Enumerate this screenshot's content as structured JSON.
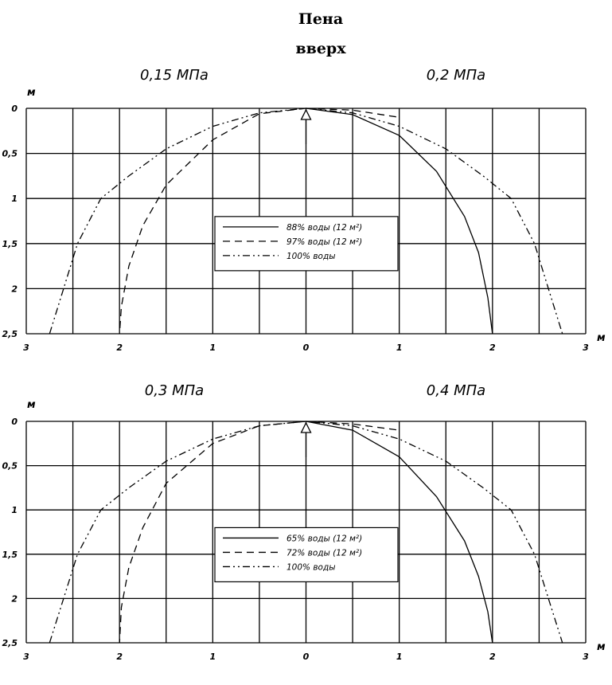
{
  "figure": {
    "title_line1": "Пена",
    "title_line2": "вверх"
  },
  "chart_data": [
    {
      "type": "line",
      "pressure_left": "0,15 МПа",
      "pressure_right": "0,2 МПа",
      "ylabel": "м",
      "xlabel": "м",
      "x_ticks": [
        "3",
        "2",
        "1",
        "0",
        "1",
        "2",
        "3"
      ],
      "x_tick_values": [
        -3,
        -2,
        -1,
        0,
        1,
        2,
        3
      ],
      "y_ticks": [
        "0",
        "0,5",
        "1",
        "1,5",
        "2",
        "2,5"
      ],
      "y_tick_values": [
        0,
        0.5,
        1,
        1.5,
        2,
        2.5
      ],
      "xlim": [
        -3,
        3
      ],
      "ylim": [
        0,
        2.5
      ],
      "y_inverted": true,
      "grid": true,
      "legend_position": "center",
      "legend_labels": [
        "88% воды (12 м²)",
        "97% воды (12 м²)",
        "100% воды"
      ],
      "series": [
        {
          "name": "88% воды (12 м²)",
          "style": "solid",
          "side": "right",
          "x": [
            0,
            0.5,
            1.0,
            1.4,
            1.7,
            1.85,
            1.95,
            2.0
          ],
          "y": [
            0,
            0.07,
            0.3,
            0.7,
            1.2,
            1.6,
            2.1,
            2.5
          ]
        },
        {
          "name": "97% воды (12 м²)",
          "style": "dashed",
          "side": "left",
          "x": [
            0,
            -0.5,
            -1.0,
            -1.5,
            -1.75,
            -1.9,
            -1.98,
            -2.0
          ],
          "y": [
            0,
            0.06,
            0.35,
            0.85,
            1.3,
            1.75,
            2.2,
            2.5
          ]
        },
        {
          "name": "97% воды (12 м²)",
          "style": "dashed",
          "side": "right",
          "x": [
            0,
            0.5,
            1.0
          ],
          "y": [
            0,
            0.02,
            0.1
          ]
        },
        {
          "name": "100% воды",
          "style": "dashdot",
          "side": "both",
          "x": [
            -2.75,
            -2.6,
            -2.45,
            -2.2,
            -1.9,
            -1.5,
            -1.0,
            -0.5,
            0,
            0.5,
            1.0,
            1.5,
            1.9,
            2.2,
            2.45,
            2.6,
            2.75
          ],
          "y": [
            2.5,
            2.0,
            1.5,
            1.0,
            0.75,
            0.45,
            0.2,
            0.05,
            0,
            0.05,
            0.2,
            0.45,
            0.75,
            1.0,
            1.5,
            2.0,
            2.5
          ]
        }
      ]
    },
    {
      "type": "line",
      "pressure_left": "0,3 МПа",
      "pressure_right": "0,4 МПа",
      "ylabel": "м",
      "xlabel": "м",
      "x_ticks": [
        "3",
        "2",
        "1",
        "0",
        "1",
        "2",
        "3"
      ],
      "x_tick_values": [
        -3,
        -2,
        -1,
        0,
        1,
        2,
        3
      ],
      "y_ticks": [
        "0",
        "0,5",
        "1",
        "1,5",
        "2",
        "2,5"
      ],
      "y_tick_values": [
        0,
        0.5,
        1,
        1.5,
        2,
        2.5
      ],
      "xlim": [
        -3,
        3
      ],
      "ylim": [
        0,
        2.5
      ],
      "y_inverted": true,
      "grid": true,
      "legend_position": "center",
      "legend_labels": [
        "65% воды (12 м²)",
        "72% воды (12 м²)",
        "100% воды"
      ],
      "series": [
        {
          "name": "65% воды (12 м²)",
          "style": "solid",
          "side": "right",
          "x": [
            0,
            0.5,
            1.0,
            1.4,
            1.7,
            1.85,
            1.95,
            2.0
          ],
          "y": [
            0,
            0.1,
            0.4,
            0.85,
            1.35,
            1.75,
            2.15,
            2.5
          ]
        },
        {
          "name": "72% воды (12 м²)",
          "style": "dashed",
          "side": "left",
          "x": [
            0,
            -0.5,
            -1.0,
            -1.5,
            -1.75,
            -1.9,
            -1.98,
            -2.0
          ],
          "y": [
            0,
            0.05,
            0.25,
            0.7,
            1.2,
            1.65,
            2.1,
            2.5
          ]
        },
        {
          "name": "72% воды (12 м²)",
          "style": "dashed",
          "side": "right",
          "x": [
            0,
            0.5,
            1.0
          ],
          "y": [
            0,
            0.03,
            0.1
          ]
        },
        {
          "name": "100% воды",
          "style": "dashdot",
          "side": "both",
          "x": [
            -2.75,
            -2.6,
            -2.45,
            -2.2,
            -1.9,
            -1.5,
            -1.0,
            -0.5,
            0,
            0.5,
            1.0,
            1.5,
            1.9,
            2.2,
            2.45,
            2.6,
            2.75
          ],
          "y": [
            2.5,
            2.0,
            1.5,
            1.0,
            0.75,
            0.45,
            0.2,
            0.05,
            0,
            0.05,
            0.2,
            0.45,
            0.75,
            1.0,
            1.5,
            2.0,
            2.5
          ]
        }
      ]
    }
  ]
}
